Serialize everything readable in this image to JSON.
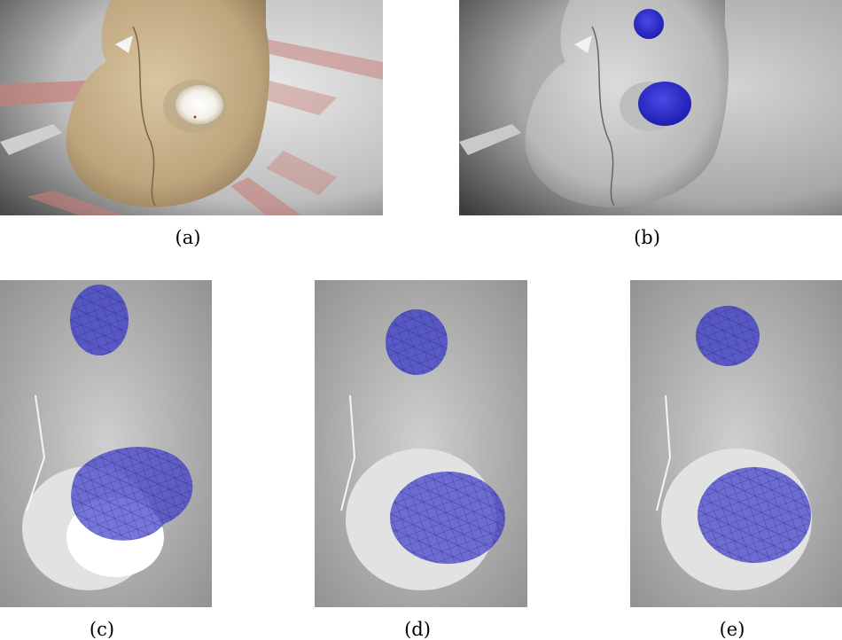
{
  "figure": {
    "panels": [
      {
        "id": "a",
        "caption": "(a)"
      },
      {
        "id": "b",
        "caption": "(b)"
      },
      {
        "id": "c",
        "caption": "(c)"
      },
      {
        "id": "d",
        "caption": "(d)"
      },
      {
        "id": "e",
        "caption": "(e)"
      }
    ]
  },
  "colors": {
    "overlay_blue": "#3a3ad6",
    "kidney_tan": "#c9b48f",
    "blood_red": "#c0605c"
  }
}
